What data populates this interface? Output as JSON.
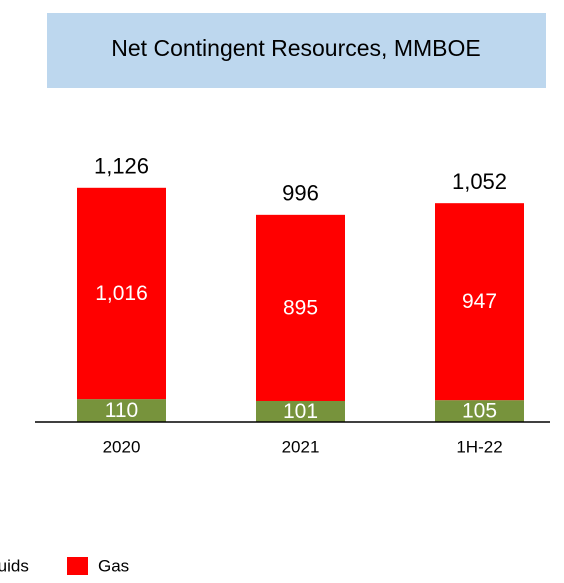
{
  "chart_data": {
    "type": "stacked_bar",
    "title": "Net Contingent Resources, MMBOE",
    "categories": [
      "2020",
      "2021",
      "1H-22"
    ],
    "series": [
      {
        "name": "Liquids",
        "color": "#77933c",
        "values": [
          110,
          101,
          105
        ]
      },
      {
        "name": "Gas",
        "color": "#ff0000",
        "values": [
          1016,
          895,
          947
        ]
      }
    ],
    "value_labels": [
      [
        "110",
        "101",
        "105"
      ],
      [
        "1,016",
        "895",
        "947"
      ]
    ],
    "totals": [
      1126,
      996,
      1052
    ],
    "total_labels": [
      "1,126",
      "996",
      "1,052"
    ],
    "ylim": [
      0,
      1250
    ],
    "legend": "bottom-left"
  }
}
